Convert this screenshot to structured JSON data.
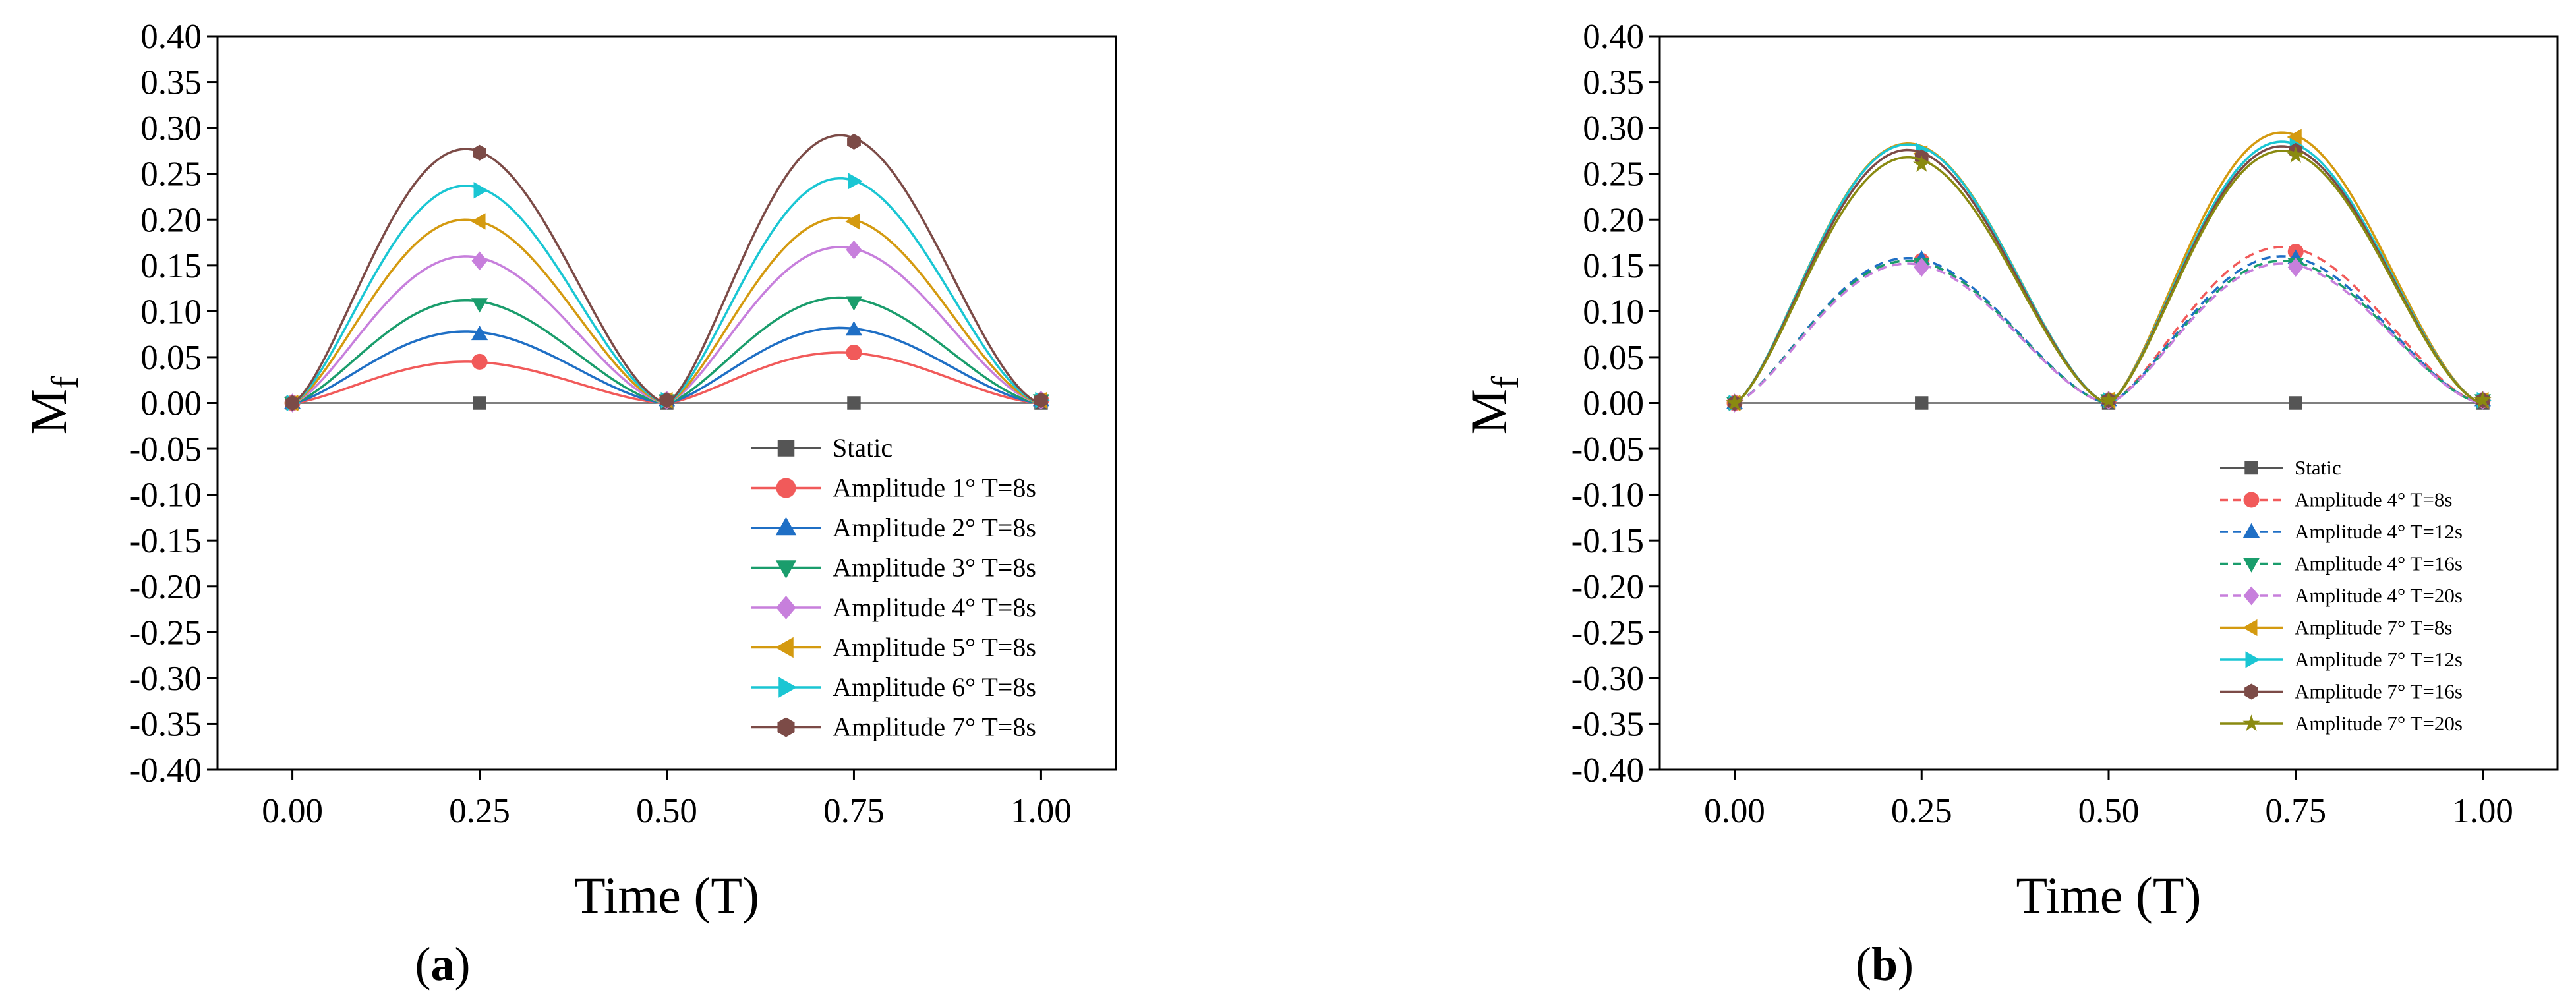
{
  "chart_data": [
    {
      "type": "line",
      "panel_label": "a",
      "title": "",
      "xlabel": "Time (T)",
      "ylabel_main": "M",
      "ylabel_sub": "f",
      "xlim": [
        -0.1,
        1.1
      ],
      "ylim": [
        -0.4,
        0.4
      ],
      "xticks": [
        "0.00",
        "0.25",
        "0.50",
        "0.75",
        "1.00"
      ],
      "yticks": [
        "0.40",
        "0.35",
        "0.30",
        "0.25",
        "0.20",
        "0.15",
        "0.10",
        "0.05",
        "0.00",
        "-0.05",
        "-0.10",
        "-0.15",
        "-0.20",
        "-0.25",
        "-0.30",
        "-0.35",
        "-0.40"
      ],
      "legend_position": "bottom-right",
      "series": [
        {
          "name": "Static",
          "color": "#555555",
          "marker": "square",
          "dash": false,
          "peaks": [
            0,
            0
          ],
          "markers": [
            0,
            0,
            0,
            0,
            0
          ]
        },
        {
          "name": "Amplitude 1° T=8s",
          "color": "#f15a5a",
          "marker": "circle",
          "dash": false,
          "peaks": [
            0.045,
            0.055
          ],
          "markers": [
            0,
            0.045,
            0.003,
            0.055,
            0.003
          ]
        },
        {
          "name": "Amplitude 2° T=8s",
          "color": "#1f6fc5",
          "marker": "triangle-up",
          "dash": false,
          "peaks": [
            0.078,
            0.082
          ],
          "markers": [
            0,
            0.075,
            0.003,
            0.08,
            0.003
          ]
        },
        {
          "name": "Amplitude 3° T=8s",
          "color": "#1a9d6c",
          "marker": "triangle-down",
          "dash": false,
          "peaks": [
            0.112,
            0.115
          ],
          "markers": [
            0,
            0.108,
            0.003,
            0.11,
            0.003
          ]
        },
        {
          "name": "Amplitude 4° T=8s",
          "color": "#c77fdc",
          "marker": "diamond",
          "dash": false,
          "peaks": [
            0.16,
            0.17
          ],
          "markers": [
            0,
            0.155,
            0.003,
            0.167,
            0.003
          ]
        },
        {
          "name": "Amplitude 5° T=8s",
          "color": "#d49a10",
          "marker": "triangle-left",
          "dash": false,
          "peaks": [
            0.2,
            0.202
          ],
          "markers": [
            0,
            0.198,
            0.003,
            0.198,
            0.003
          ]
        },
        {
          "name": "Amplitude 6° T=8s",
          "color": "#1ac6d3",
          "marker": "triangle-right",
          "dash": false,
          "peaks": [
            0.237,
            0.245
          ],
          "markers": [
            0,
            0.232,
            0.003,
            0.242,
            0.003
          ]
        },
        {
          "name": "Amplitude 7° T=8s",
          "color": "#7c4b47",
          "marker": "hexagon",
          "dash": false,
          "peaks": [
            0.277,
            0.292
          ],
          "markers": [
            0,
            0.273,
            0.003,
            0.285,
            0.003
          ]
        }
      ]
    },
    {
      "type": "line",
      "panel_label": "b",
      "title": "",
      "xlabel": "Time (T)",
      "ylabel_main": "M",
      "ylabel_sub": "f",
      "xlim": [
        -0.1,
        1.1
      ],
      "ylim": [
        -0.4,
        0.4
      ],
      "xticks": [
        "0.00",
        "0.25",
        "0.50",
        "0.75",
        "1.00"
      ],
      "yticks": [
        "0.40",
        "0.35",
        "0.30",
        "0.25",
        "0.20",
        "0.15",
        "0.10",
        "0.05",
        "0.00",
        "-0.05",
        "-0.10",
        "-0.15",
        "-0.20",
        "-0.25",
        "-0.30",
        "-0.35",
        "-0.40"
      ],
      "legend_position": "bottom-right",
      "series": [
        {
          "name": "Static",
          "color": "#555555",
          "marker": "square",
          "dash": false,
          "peaks": [
            0,
            0
          ],
          "markers": [
            0,
            0,
            0,
            0,
            0
          ]
        },
        {
          "name": "Amplitude 4° T=8s",
          "color": "#f15a5a",
          "marker": "circle",
          "dash": true,
          "peaks": [
            0.155,
            0.17
          ],
          "markers": [
            0,
            0.155,
            0.003,
            0.165,
            0.003
          ]
        },
        {
          "name": "Amplitude 4° T=12s",
          "color": "#1f6fc5",
          "marker": "triangle-up",
          "dash": true,
          "peaks": [
            0.158,
            0.16
          ],
          "markers": [
            0,
            0.157,
            0.003,
            0.158,
            0.003
          ]
        },
        {
          "name": "Amplitude 4° T=16s",
          "color": "#1a9d6c",
          "marker": "triangle-down",
          "dash": true,
          "peaks": [
            0.155,
            0.155
          ],
          "markers": [
            0,
            0.152,
            0.003,
            0.152,
            0.003
          ]
        },
        {
          "name": "Amplitude 4° T=20s",
          "color": "#c77fdc",
          "marker": "diamond",
          "dash": true,
          "peaks": [
            0.152,
            0.152
          ],
          "markers": [
            0,
            0.148,
            0.003,
            0.148,
            0.003
          ]
        },
        {
          "name": "Amplitude 7° T=8s",
          "color": "#d49a10",
          "marker": "triangle-left",
          "dash": false,
          "peaks": [
            0.283,
            0.295
          ],
          "markers": [
            0,
            0.272,
            0.003,
            0.29,
            0.003
          ]
        },
        {
          "name": "Amplitude 7° T=12s",
          "color": "#1ac6d3",
          "marker": "triangle-right",
          "dash": false,
          "peaks": [
            0.282,
            0.285
          ],
          "markers": [
            0,
            0.275,
            0.003,
            0.28,
            0.003
          ]
        },
        {
          "name": "Amplitude 7° T=16s",
          "color": "#7c4b47",
          "marker": "hexagon",
          "dash": false,
          "peaks": [
            0.276,
            0.28
          ],
          "markers": [
            0,
            0.268,
            0.003,
            0.275,
            0.003
          ]
        },
        {
          "name": "Amplitude 7° T=20s",
          "color": "#8a8a10",
          "marker": "star",
          "dash": false,
          "peaks": [
            0.268,
            0.275
          ],
          "markers": [
            0,
            0.26,
            0.003,
            0.27,
            0.003
          ]
        }
      ]
    }
  ]
}
